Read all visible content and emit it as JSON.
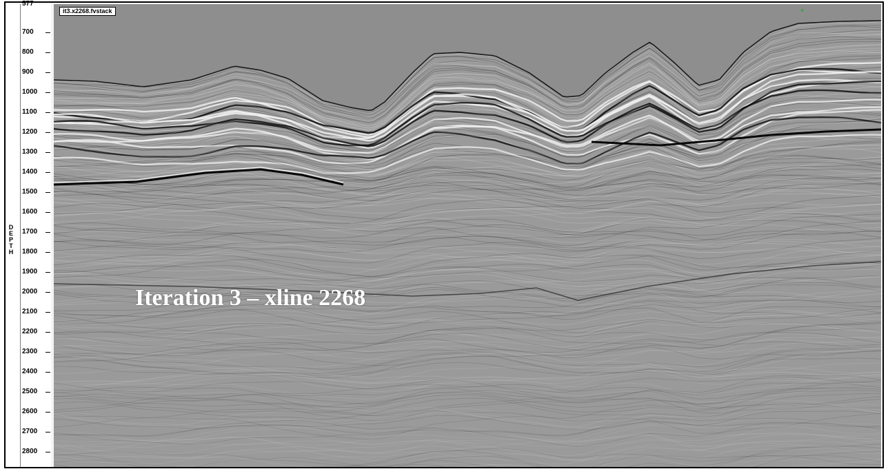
{
  "section": {
    "tag": "it3.x2268.fvstack",
    "overlay_title": "Iteration 3 – xline 2268"
  },
  "axis": {
    "label": "DEPTH",
    "top_partial_label": "577",
    "ticks": [
      "700",
      "800",
      "900",
      "1000",
      "1100",
      "1200",
      "1300",
      "1400",
      "1500",
      "1600",
      "1700",
      "1800",
      "1900",
      "2000",
      "2100",
      "2200",
      "2300",
      "2400",
      "2500",
      "2600",
      "2700",
      "2800"
    ]
  },
  "colors": {
    "water": "#8e8e8e",
    "background": "#9a9a9a",
    "reflector_dark": "#0b0b0b",
    "reflector_light": "#f2f2f2",
    "marker": "#2aa52a"
  },
  "icons": {
    "marker": "crosshair-icon"
  }
}
